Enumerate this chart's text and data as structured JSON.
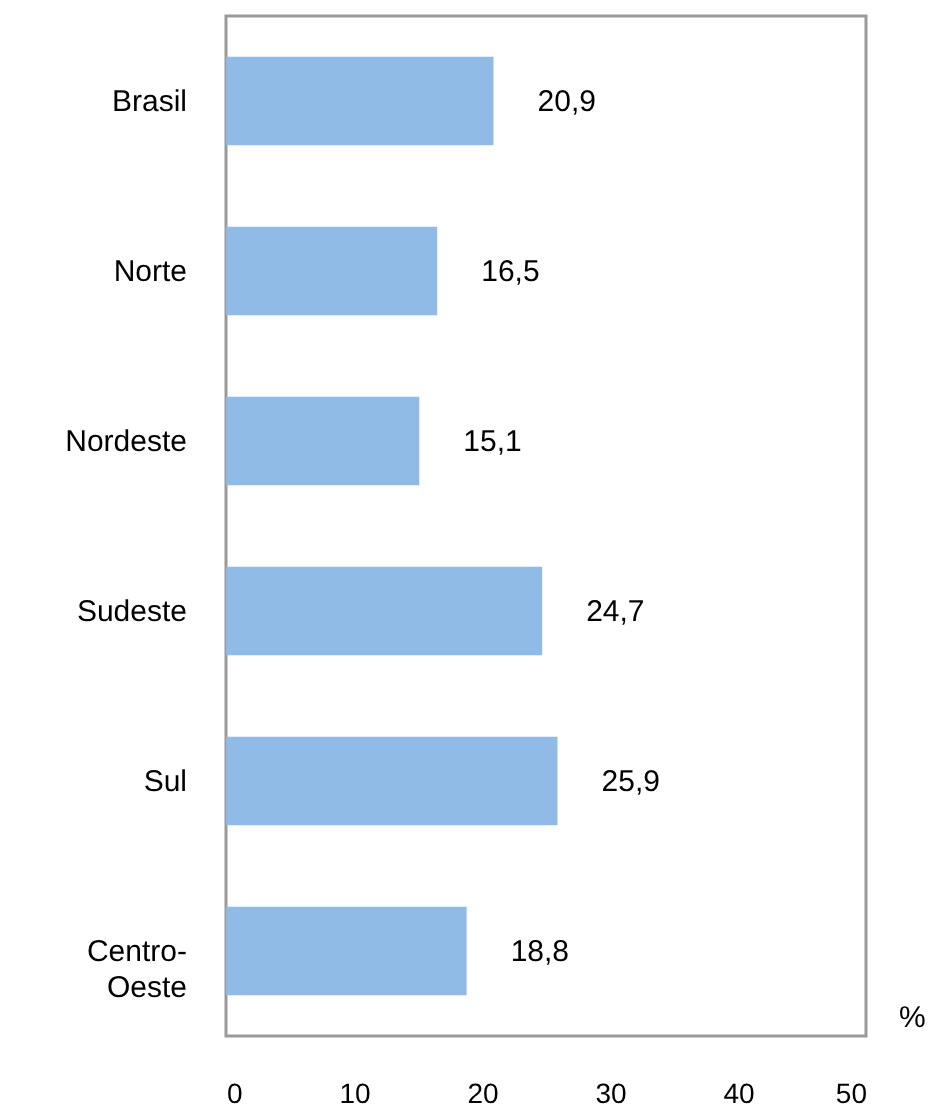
{
  "chart_data": {
    "type": "bar",
    "orientation": "horizontal",
    "categories": [
      "Brasil",
      "Norte",
      "Nordeste",
      "Sudeste",
      "Sul",
      "Centro-\nOeste"
    ],
    "values": [
      20.9,
      16.5,
      15.1,
      24.7,
      25.9,
      18.8
    ],
    "value_labels": [
      "20,9",
      "16,5",
      "15,1",
      "24,7",
      "25,9",
      "18,8"
    ],
    "color": "#8fbbe6",
    "xlabel": "%",
    "xlim": [
      0,
      50
    ],
    "xticks": [
      0,
      10,
      20,
      30,
      40,
      50
    ]
  }
}
